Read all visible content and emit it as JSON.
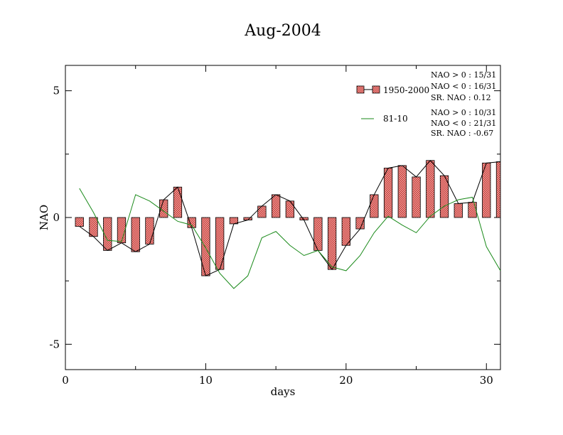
{
  "chart_data": {
    "type": "bar",
    "title": "Aug-2004",
    "xlabel": "days",
    "ylabel": "NAO",
    "xlim": [
      0,
      31
    ],
    "ylim": [
      -6,
      6
    ],
    "x_ticks": [
      0,
      10,
      20,
      30
    ],
    "y_ticks": [
      -5,
      0,
      5
    ],
    "x_tick_labels": [
      "0",
      "10",
      "20",
      "30"
    ],
    "y_tick_labels": [
      "-5",
      "0",
      "5"
    ],
    "grid": false,
    "legend_position": "top-right",
    "x": [
      1,
      2,
      3,
      4,
      5,
      6,
      7,
      8,
      9,
      10,
      11,
      12,
      13,
      14,
      15,
      16,
      17,
      18,
      19,
      20,
      21,
      22,
      23,
      24,
      25,
      26,
      27,
      28,
      29,
      30,
      31
    ],
    "series": [
      {
        "name": "1950-2000",
        "kind": "bar",
        "color": "#e8716d",
        "values": [
          -0.35,
          -0.75,
          -1.3,
          -1.0,
          -1.35,
          -1.05,
          0.7,
          1.2,
          -0.4,
          -2.3,
          -2.05,
          -0.25,
          -0.1,
          0.45,
          0.9,
          0.65,
          -0.1,
          -1.3,
          -2.05,
          -1.1,
          -0.45,
          0.9,
          1.95,
          2.05,
          1.6,
          2.25,
          1.65,
          0.55,
          0.6,
          2.15,
          2.2
        ]
      },
      {
        "name": "81-10",
        "kind": "line",
        "color": "#1a8a1a",
        "values": [
          1.15,
          0.2,
          -0.9,
          -0.95,
          0.9,
          0.65,
          0.25,
          -0.15,
          -0.3,
          -1.2,
          -2.2,
          -2.8,
          -2.3,
          -0.8,
          -0.55,
          -1.1,
          -1.5,
          -1.3,
          -1.95,
          -2.1,
          -1.5,
          -0.6,
          0.05,
          -0.3,
          -0.6,
          0.05,
          0.45,
          0.7,
          0.8,
          -1.15,
          -2.1
        ]
      }
    ],
    "stats": {
      "group1": [
        "NAO > 0 :  15/31",
        "NAO < 0 :  16/31",
        "SR. NAO :  0.12"
      ],
      "group2": [
        "NAO > 0 :  10/31",
        "NAO < 0 :  21/31",
        "SR. NAO :  -0.67"
      ]
    }
  }
}
